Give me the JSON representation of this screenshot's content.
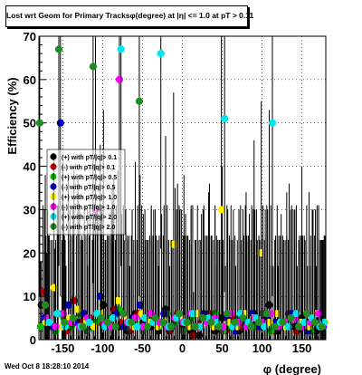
{
  "header": {
    "title": "Lost wrt Geom for Primary Tracksφ(degree) at |η| <= 1.0 at pT > 0.11"
  },
  "footer": {
    "timestamp": "Wed Oct  8 18:28:10 2014"
  },
  "chart_data": {
    "type": "scatter",
    "title": "Lost wrt Geom for Primary Tracksφ(degree) at |η| <= 1.0 at pT > 0.11",
    "xlabel": "φ (degree)",
    "ylabel": "Efficiency (%)",
    "xlim": [
      -180,
      180
    ],
    "ylim": [
      0,
      70
    ],
    "xticks": [
      -150,
      -100,
      -50,
      0,
      50,
      100,
      150
    ],
    "yticks": [
      0,
      10,
      20,
      30,
      40,
      50,
      60,
      70
    ],
    "grid": true,
    "legend_position": "left-middle",
    "series": [
      {
        "name": "(+) with pT/|q|> 0.1",
        "color": "#000000",
        "x": [
          -177,
          -170,
          -160,
          -150,
          -141,
          -131,
          -119,
          -111,
          -99,
          -88,
          -79,
          -69,
          -59,
          -49,
          -39,
          -30,
          -21,
          -9,
          2,
          11,
          21,
          33,
          41,
          50,
          61,
          71,
          80,
          90,
          99,
          109,
          120,
          131,
          141,
          150,
          159,
          168
        ],
        "y": [
          8,
          5,
          3,
          6,
          3,
          4,
          2,
          4,
          8,
          5,
          3,
          2,
          6,
          4,
          3,
          2,
          7,
          5,
          3,
          2,
          1,
          4,
          2,
          5,
          3,
          2,
          4,
          6,
          3,
          8,
          2,
          4,
          3,
          5,
          4,
          2
        ],
        "err": [
          10,
          15,
          18,
          35,
          20,
          30,
          15,
          25,
          45,
          30,
          20,
          15,
          35,
          25,
          20,
          15,
          40,
          30,
          35,
          20,
          10,
          30,
          15,
          35,
          20,
          15,
          30,
          40,
          20,
          45,
          15,
          30,
          20,
          35,
          30,
          15
        ]
      },
      {
        "name": "(-) with pT/|q|> 0.1",
        "color": "#cc0000",
        "x": [
          -175,
          -165,
          -156,
          -146,
          -136,
          -126,
          -116,
          -106,
          -96,
          -86,
          -76,
          -66,
          -56,
          -46,
          -36,
          -26,
          -16,
          -6,
          4,
          14,
          24,
          34,
          44,
          54,
          64,
          74,
          84,
          94,
          104,
          114,
          124,
          134,
          144,
          154,
          164,
          174
        ],
        "y": [
          11,
          3,
          6,
          2,
          9,
          4,
          5,
          4,
          3,
          7,
          4,
          2,
          6,
          3,
          5,
          4,
          2,
          6,
          4,
          1,
          4,
          6,
          3,
          2,
          5,
          3,
          4,
          3,
          5,
          2,
          4,
          6,
          2,
          3,
          5,
          3
        ],
        "err": [
          20,
          20,
          25,
          15,
          30,
          20,
          25,
          25,
          20,
          30,
          25,
          15,
          25,
          20,
          25,
          25,
          15,
          30,
          25,
          10,
          25,
          30,
          20,
          15,
          25,
          20,
          25,
          20,
          25,
          15,
          25,
          30,
          15,
          20,
          25,
          20
        ]
      },
      {
        "name": "(+) with pT/|q|> 0.5",
        "color": "#00bb00",
        "x": [
          -178,
          -168,
          -159,
          -149,
          -139,
          -129,
          -119,
          -109,
          -99,
          -89,
          -79,
          -69,
          -59,
          -49,
          -39,
          -29,
          -19,
          -9,
          1,
          11,
          21,
          31,
          41,
          51,
          61,
          71,
          81,
          91,
          101,
          111,
          121,
          131,
          141,
          151,
          161,
          171
        ],
        "y": [
          3,
          4,
          2,
          5,
          3,
          6,
          2,
          4,
          3,
          5,
          7,
          3,
          4,
          2,
          5,
          3,
          6,
          4,
          2,
          5,
          3,
          4,
          6,
          2,
          3,
          5,
          4,
          3,
          6,
          2,
          4,
          3,
          5,
          4,
          2,
          3
        ],
        "err": [
          15,
          20,
          15,
          25,
          15,
          25,
          15,
          20,
          15,
          25,
          30,
          20,
          20,
          15,
          25,
          20,
          25,
          20,
          15,
          25,
          20,
          20,
          25,
          15,
          20,
          25,
          20,
          20,
          25,
          15,
          20,
          20,
          25,
          20,
          15,
          20
        ]
      },
      {
        "name": "(-) with pT/|q|> 0.5",
        "color": "#0000cc",
        "x": [
          -173,
          -163,
          -153,
          -143,
          -133,
          -123,
          -113,
          -103,
          -93,
          -83,
          -73,
          -63,
          -53,
          -43,
          -33,
          -23,
          -13,
          -3,
          7,
          17,
          27,
          37,
          47,
          57,
          67,
          77,
          87,
          97,
          107,
          117,
          127,
          137,
          147,
          157,
          167,
          177
        ],
        "y": [
          5,
          3,
          50,
          8,
          4,
          6,
          3,
          10,
          4,
          6,
          3,
          5,
          8,
          3,
          4,
          6,
          3,
          5,
          4,
          3,
          6,
          4,
          3,
          5,
          2,
          4,
          6,
          3,
          5,
          4,
          3,
          6,
          4,
          2,
          5,
          3
        ],
        "err": [
          25,
          20,
          40,
          30,
          20,
          25,
          20,
          35,
          20,
          25,
          20,
          25,
          30,
          20,
          20,
          25,
          20,
          25,
          20,
          20,
          25,
          20,
          20,
          25,
          15,
          20,
          25,
          20,
          25,
          20,
          20,
          25,
          20,
          15,
          25,
          20
        ]
      },
      {
        "name": "(+) with pT/|q|> 1.0",
        "color": "#ffee00",
        "x": [
          -171,
          -161,
          -151,
          -141,
          -131,
          -121,
          -111,
          -101,
          -91,
          -81,
          -71,
          -61,
          -51,
          -41,
          -31,
          -21,
          -11,
          -1,
          9,
          19,
          29,
          39,
          49,
          59,
          69,
          79,
          89,
          99,
          109,
          119,
          129,
          139,
          149,
          159,
          169,
          179
        ],
        "y": [
          4,
          12,
          3,
          5,
          7,
          4,
          3,
          6,
          4,
          9,
          5,
          3,
          6,
          4,
          3,
          4,
          22,
          5,
          3,
          6,
          4,
          3,
          30,
          4,
          3,
          6,
          5,
          20,
          4,
          6,
          3,
          5,
          4,
          3,
          6,
          4
        ],
        "err": [
          20,
          30,
          20,
          25,
          30,
          20,
          20,
          25,
          20,
          30,
          25,
          20,
          25,
          20,
          20,
          20,
          35,
          25,
          20,
          25,
          20,
          20,
          40,
          20,
          20,
          25,
          25,
          35,
          20,
          25,
          20,
          25,
          20,
          20,
          25,
          20
        ]
      },
      {
        "name": "(-) with pT/|q|> 1.0",
        "color": "#ff00ff",
        "x": [
          -169,
          -159,
          -149,
          -139,
          -129,
          -119,
          -109,
          -99,
          -89,
          -79,
          -69,
          -59,
          -49,
          -39,
          -29,
          -19,
          -9,
          1,
          11,
          21,
          31,
          41,
          51,
          61,
          71,
          81,
          91,
          101,
          111,
          121,
          131,
          141,
          151,
          161,
          171,
          176
        ],
        "y": [
          5,
          3,
          6,
          4,
          3,
          5,
          30,
          4,
          3,
          60,
          4,
          5,
          3,
          6,
          4,
          3,
          5,
          4,
          6,
          3,
          4,
          5,
          3,
          6,
          4,
          3,
          5,
          4,
          6,
          3,
          4,
          5,
          3,
          4,
          6,
          3
        ],
        "err": [
          25,
          20,
          25,
          20,
          20,
          25,
          40,
          20,
          20,
          50,
          20,
          25,
          20,
          25,
          20,
          20,
          25,
          20,
          25,
          20,
          20,
          25,
          20,
          25,
          20,
          20,
          25,
          20,
          25,
          20,
          20,
          25,
          20,
          20,
          25,
          20
        ]
      },
      {
        "name": "(+) with pT/|q|> 2.0",
        "color": "#00e5ee",
        "x": [
          -167,
          -157,
          -147,
          -137,
          -127,
          -117,
          -107,
          -97,
          -87,
          -77,
          -67,
          -57,
          -47,
          -37,
          -27,
          -17,
          -7,
          3,
          13,
          23,
          33,
          43,
          53,
          63,
          73,
          83,
          93,
          103,
          113,
          123,
          133,
          143,
          153,
          163,
          173,
          178
        ],
        "y": [
          4,
          6,
          3,
          5,
          3,
          4,
          6,
          3,
          5,
          67,
          4,
          3,
          5,
          4,
          66,
          3,
          5,
          4,
          6,
          3,
          5,
          4,
          51,
          3,
          6,
          4,
          5,
          3,
          50,
          4,
          3,
          6,
          4,
          5,
          3,
          4
        ],
        "err": [
          20,
          25,
          20,
          25,
          20,
          20,
          25,
          20,
          25,
          50,
          20,
          20,
          25,
          20,
          45,
          20,
          25,
          20,
          25,
          20,
          25,
          20,
          40,
          20,
          25,
          20,
          25,
          20,
          40,
          20,
          20,
          25,
          20,
          25,
          20,
          20
        ]
      },
      {
        "name": "(-) with pT/|q|> 2.0",
        "color": "#228b22",
        "x": [
          -179,
          -172,
          -155,
          -148,
          -137,
          -125,
          -112,
          -102,
          -94,
          -84,
          -74,
          -64,
          -54,
          -44,
          -34,
          -24,
          -14,
          -4,
          6,
          16,
          26,
          36,
          46,
          56,
          66,
          76,
          86,
          96,
          106,
          116,
          126,
          136,
          146,
          156,
          166,
          175
        ],
        "y": [
          50,
          8,
          67,
          4,
          5,
          3,
          63,
          5,
          4,
          3,
          6,
          4,
          55,
          3,
          5,
          4,
          3,
          6,
          4,
          3,
          5,
          4,
          3,
          6,
          4,
          5,
          3,
          4,
          6,
          3,
          4,
          5,
          3,
          6,
          4,
          3
        ],
        "err": [
          40,
          30,
          50,
          20,
          25,
          20,
          50,
          25,
          20,
          20,
          25,
          20,
          45,
          20,
          25,
          20,
          20,
          25,
          20,
          20,
          25,
          20,
          20,
          25,
          20,
          25,
          20,
          20,
          25,
          20,
          20,
          25,
          20,
          25,
          20,
          20
        ]
      }
    ]
  }
}
